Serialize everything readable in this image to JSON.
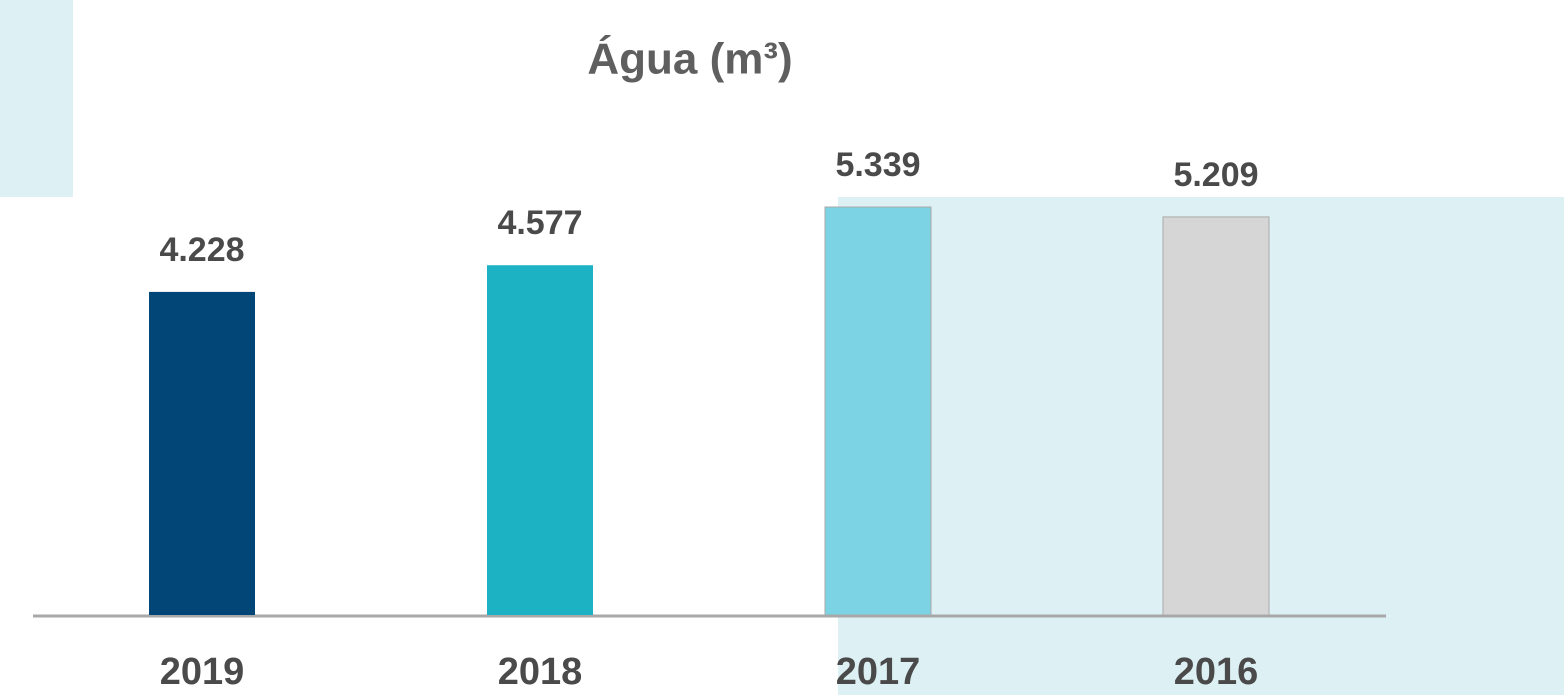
{
  "chart_data": {
    "type": "bar",
    "title": "Água (m³)",
    "categories": [
      "2019",
      "2018",
      "2017",
      "2016"
    ],
    "values": [
      4228,
      4577,
      5339,
      5209
    ],
    "value_labels": [
      "4.228",
      "4.577",
      "5.339",
      "5.209"
    ],
    "colors": [
      "#024677",
      "#1db1c4",
      "#7bd3e4",
      "#d6d6d6"
    ]
  }
}
